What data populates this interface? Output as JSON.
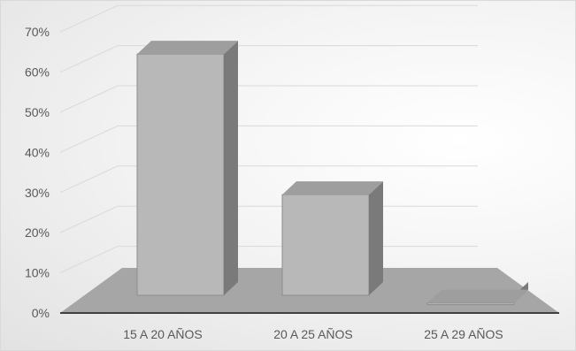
{
  "chart_data": {
    "type": "bar",
    "title": "",
    "xlabel": "",
    "ylabel": "",
    "categories": [
      "15 A 20 AÑOS",
      "20 A 25 AÑOS",
      "25 A 29 AÑOS"
    ],
    "values": [
      0.645,
      0.295,
      0.025
    ],
    "ylim": [
      0,
      0.7
    ],
    "yticks": [
      "0%",
      "10%",
      "20%",
      "30%",
      "40%",
      "50%",
      "60%",
      "70%"
    ],
    "grid": true,
    "legend": "none",
    "style": "3d-column",
    "colors": {
      "bar_front": "#b8b8b8",
      "bar_side": "#7a7a7a",
      "bar_top": "#9e9e9e",
      "floor": "#a6a6a6",
      "axis": "#404040",
      "grid": "#d9d9d9"
    }
  }
}
